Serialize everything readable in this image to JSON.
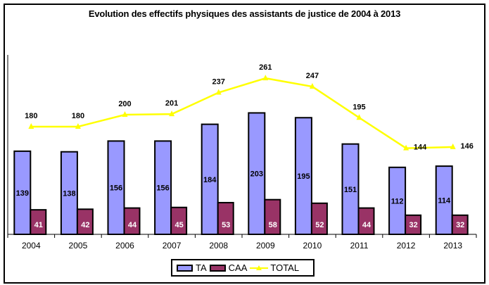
{
  "chart_data": {
    "type": "bar",
    "title": "Evolution des effectifs physiques des assistants de justice de 2004 à 2013",
    "xlabel": "",
    "ylabel": "",
    "ylim": [
      0,
      300
    ],
    "grid": false,
    "legend_position": "bottom",
    "categories": [
      "2004",
      "2005",
      "2006",
      "2007",
      "2008",
      "2009",
      "2010",
      "2011",
      "2012",
      "2013"
    ],
    "series": [
      {
        "name": "TA",
        "type": "bar",
        "color": "#9999ff",
        "values": [
          139,
          138,
          156,
          156,
          184,
          203,
          195,
          151,
          112,
          114
        ]
      },
      {
        "name": "CAA",
        "type": "bar",
        "color": "#993366",
        "values": [
          41,
          42,
          44,
          45,
          53,
          58,
          52,
          44,
          32,
          32
        ]
      },
      {
        "name": "TOTAL",
        "type": "line",
        "color": "#ffff00",
        "values": [
          180,
          180,
          200,
          201,
          237,
          261,
          247,
          195,
          144,
          146
        ]
      }
    ]
  }
}
